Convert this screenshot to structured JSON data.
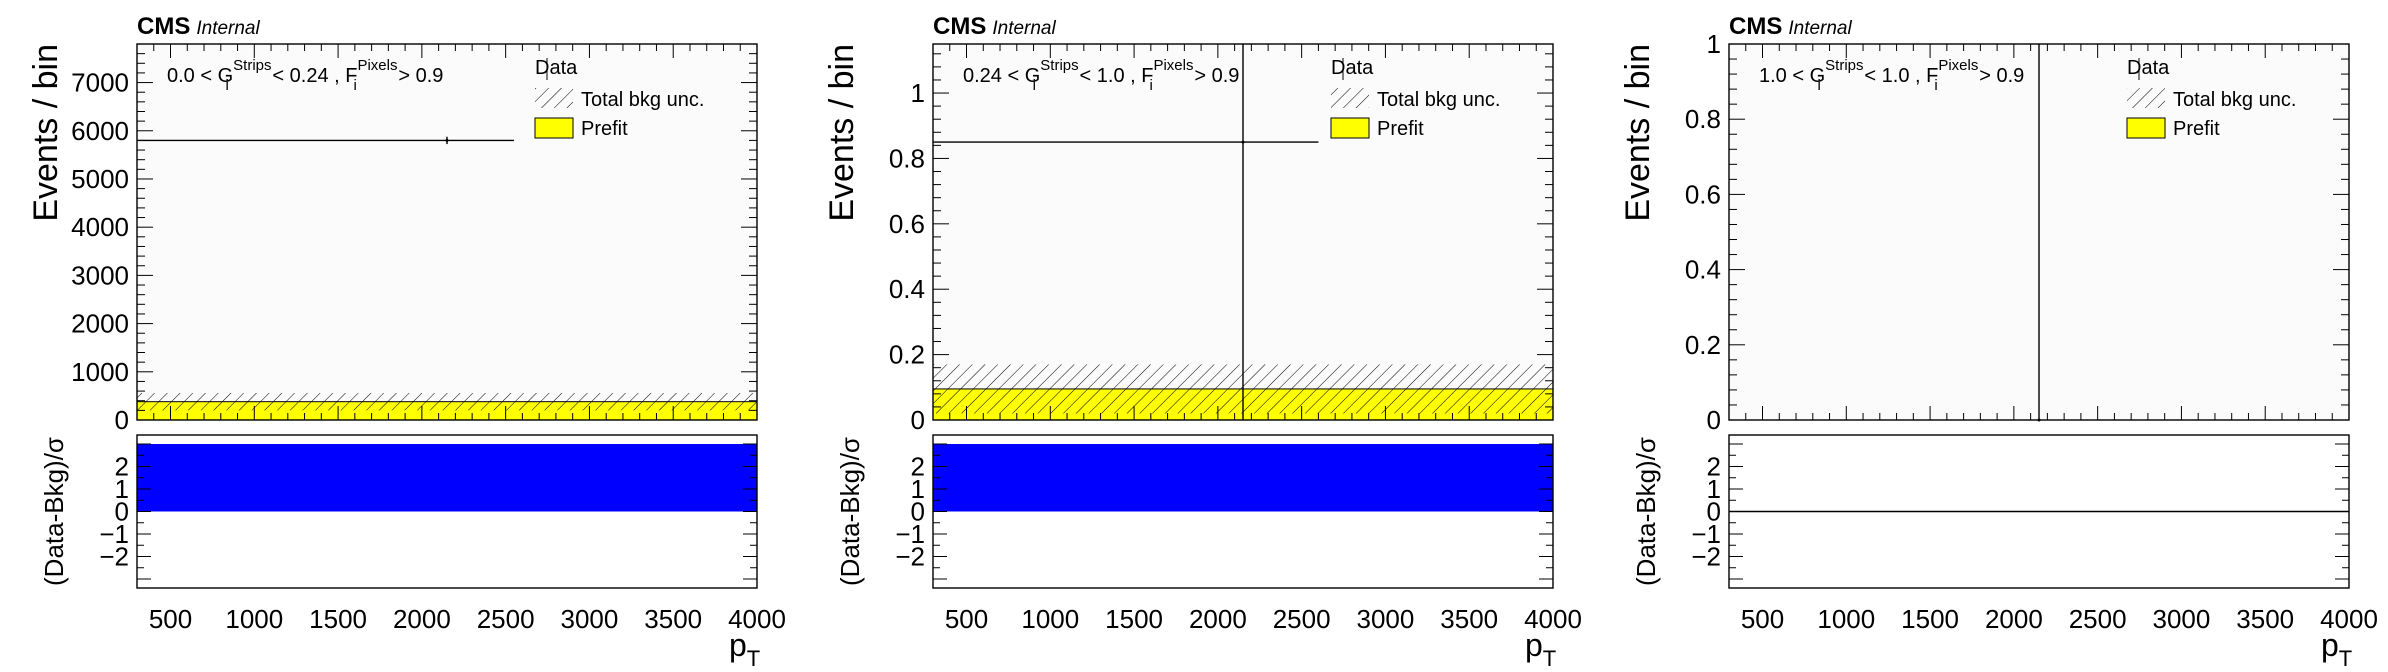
{
  "chart_data": [
    {
      "type": "bar",
      "panel_label": "0.0 < G_i^Strips < 0.24 , F_i^Pixels > 0.9",
      "region_text": {
        "pre": "0.0 < G",
        "sub1": "i",
        "sup1": "Strips",
        "mid": " < 0.24 , F",
        "sub2": "i",
        "sup2": "Pixels",
        "post": " > 0.9"
      },
      "experiment": "CMS",
      "experiment_tag": "Internal",
      "xlabel": "p",
      "xlabel_sub": "T",
      "ylabel": "Events / bin",
      "xlim": [
        300,
        4000
      ],
      "xticks": [
        500,
        1000,
        1500,
        2000,
        2500,
        3000,
        3500,
        4000
      ],
      "ylim": [
        0,
        7800
      ],
      "yticks": [
        0,
        1000,
        2000,
        3000,
        4000,
        5000,
        6000,
        7000
      ],
      "series": [
        {
          "name": "Prefit",
          "kind": "stack",
          "bins": [
            [
              300,
              4000,
              380
            ]
          ]
        },
        {
          "name": "Total bkg unc.",
          "kind": "band",
          "bins": [
            [
              300,
              4000,
              200,
              560
            ]
          ]
        },
        {
          "name": "Data",
          "kind": "points",
          "points": [
            {
              "x": 2150,
              "y": 5800,
              "xerr": [
                300,
                2550
              ],
              "yerr": 76
            }
          ]
        }
      ],
      "ratio": {
        "ylabel": "(Data-Bkg)/σ",
        "ylim": [
          -3.4,
          3.4
        ],
        "yticks": [
          -2,
          -1,
          0,
          1,
          2
        ],
        "yticklabels": [
          "−2",
          "−1",
          "0",
          "1",
          "2"
        ],
        "bins": [
          [
            300,
            4000,
            3
          ]
        ]
      },
      "legend": {
        "data": "Data",
        "unc": "Total bkg unc.",
        "prefit": "Prefit"
      }
    },
    {
      "type": "bar",
      "panel_label": "0.24 < G_i^Strips < 1.0 , F_i^Pixels > 0.9",
      "region_text": {
        "pre": "0.24 < G",
        "sub1": "i",
        "sup1": "Strips",
        "mid": " < 1.0 , F",
        "sub2": "i",
        "sup2": "Pixels",
        "post": " > 0.9"
      },
      "experiment": "CMS",
      "experiment_tag": "Internal",
      "xlabel": "p",
      "xlabel_sub": "T",
      "ylabel": "Events / bin",
      "xlim": [
        300,
        4000
      ],
      "xticks": [
        500,
        1000,
        1500,
        2000,
        2500,
        3000,
        3500,
        4000
      ],
      "ylim": [
        0,
        1.15
      ],
      "yticks": [
        0,
        0.2,
        0.4,
        0.6,
        0.8,
        1
      ],
      "yticklabels": [
        "0",
        "0.2",
        "0.4",
        "0.6",
        "0.8",
        "1"
      ],
      "series": [
        {
          "name": "Prefit",
          "kind": "stack",
          "bins": [
            [
              300,
              4000,
              0.095
            ]
          ]
        },
        {
          "name": "Total bkg unc.",
          "kind": "band",
          "bins": [
            [
              300,
              4000,
              0.02,
              0.17
            ]
          ]
        },
        {
          "name": "Data",
          "kind": "points",
          "points": [
            {
              "x": 2150,
              "y": 0.85,
              "xerr": [
                300,
                2600
              ],
              "yerr": 1.0
            }
          ]
        }
      ],
      "ratio": {
        "ylabel": "(Data-Bkg)/σ",
        "ylim": [
          -3.4,
          3.4
        ],
        "yticks": [
          -2,
          -1,
          0,
          1,
          2
        ],
        "yticklabels": [
          "−2",
          "−1",
          "0",
          "1",
          "2"
        ],
        "bins": [
          [
            300,
            4000,
            3
          ]
        ]
      },
      "legend": {
        "data": "Data",
        "unc": "Total bkg unc.",
        "prefit": "Prefit"
      }
    },
    {
      "type": "bar",
      "panel_label": "1.0 < G_i^Strips < 1.0 , F_i^Pixels > 0.9",
      "region_text": {
        "pre": "1.0 < G",
        "sub1": "i",
        "sup1": "Strips",
        "mid": " < 1.0 , F",
        "sub2": "i",
        "sup2": "Pixels",
        "post": " > 0.9"
      },
      "experiment": "CMS",
      "experiment_tag": "Internal",
      "xlabel": "p",
      "xlabel_sub": "T",
      "ylabel": "Events / bin",
      "xlim": [
        300,
        4000
      ],
      "xticks": [
        500,
        1000,
        1500,
        2000,
        2500,
        3000,
        3500,
        4000
      ],
      "ylim": [
        0,
        1
      ],
      "yticks": [
        0,
        0.2,
        0.4,
        0.6,
        0.8,
        1
      ],
      "yticklabels": [
        "0",
        "0.2",
        "0.4",
        "0.6",
        "0.8",
        "1"
      ],
      "series": [
        {
          "name": "Prefit",
          "kind": "stack",
          "bins": []
        },
        {
          "name": "Total bkg unc.",
          "kind": "band",
          "bins": []
        },
        {
          "name": "Data",
          "kind": "points",
          "points": [
            {
              "x": 2150,
              "y": 0,
              "xerr": null,
              "yerr": 1.0
            }
          ]
        }
      ],
      "ratio": {
        "ylabel": "(Data-Bkg)/σ",
        "ylim": [
          -3.4,
          3.4
        ],
        "yticks": [
          -2,
          -1,
          0,
          1,
          2
        ],
        "yticklabels": [
          "−2",
          "−1",
          "0",
          "1",
          "2"
        ],
        "bins": [],
        "zero_line": true
      },
      "legend": {
        "data": "Data",
        "unc": "Total bkg unc.",
        "prefit": "Prefit"
      }
    }
  ],
  "colors": {
    "prefit_fill": "#ffff00",
    "ratio_fill": "#0000ff",
    "frame": "#000000",
    "plot_bg": "#fbfbfb"
  }
}
